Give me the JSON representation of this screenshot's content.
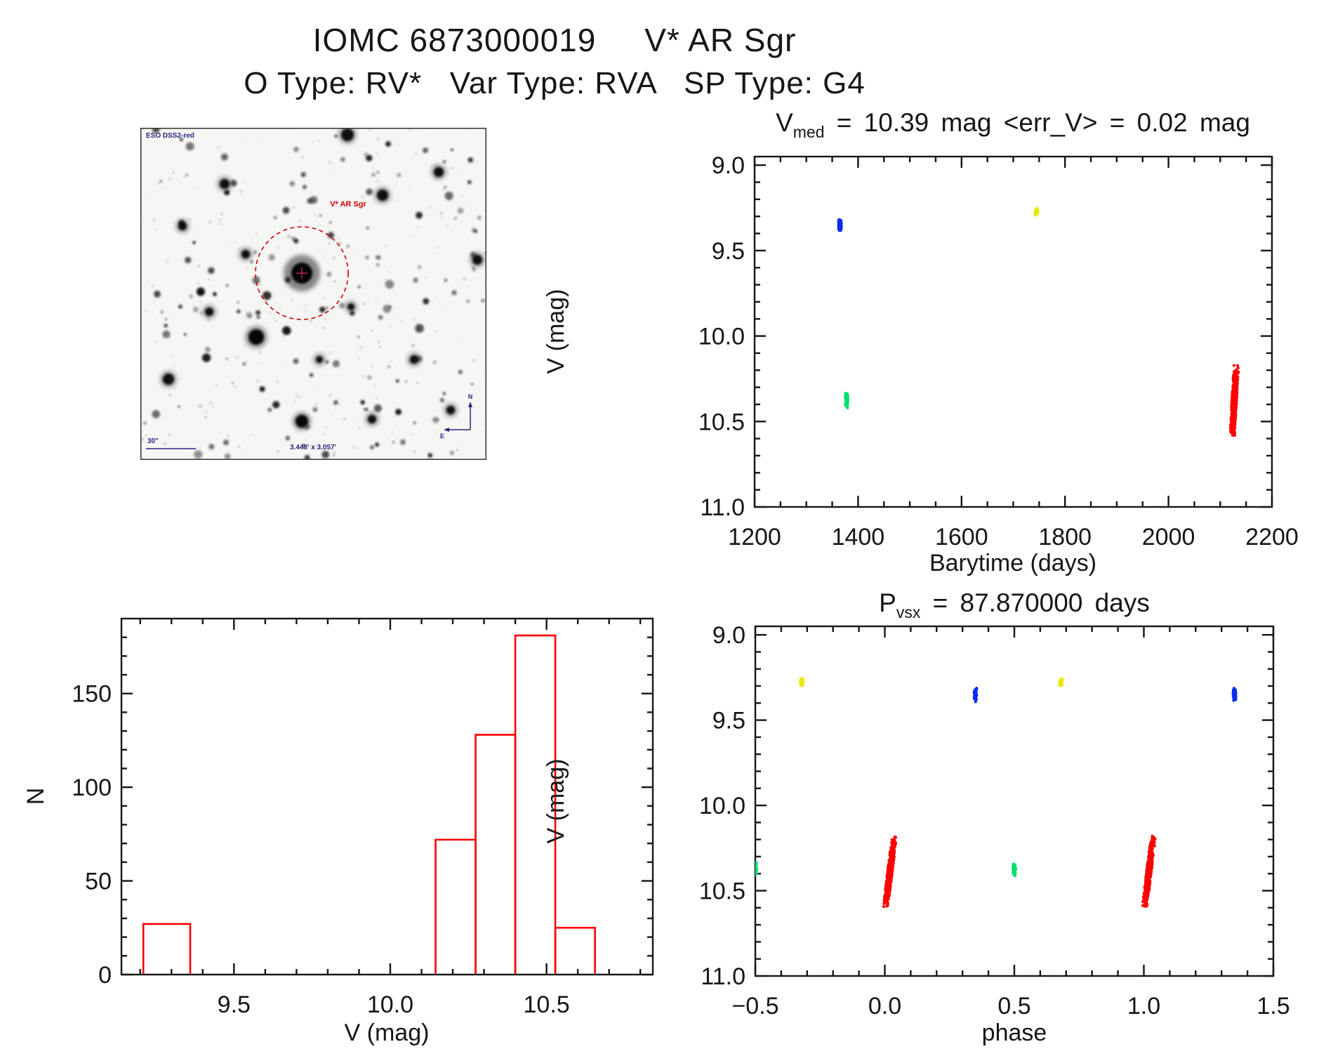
{
  "header": {
    "title": "IOMC 6873000019     V* AR Sgr",
    "subtitle": "O Type: RV*   Var Type: RVA   SP Type: G4"
  },
  "colors": {
    "red": "#ff0000",
    "blue": "#0a2cf0",
    "green": "#00e070",
    "yellow": "#e9e900",
    "frame": "#151515",
    "annotation_blue": "#26267e",
    "target_red": "#cc0000",
    "target_cross": "#cc2266"
  },
  "dss_panel": {
    "survey_label": "ESO DSS2-red",
    "target_label": "V* AR Sgr",
    "scale_label": "30\"",
    "fov_label": "3.448' x 3.057'",
    "compass_north": "N",
    "compass_east": "E"
  },
  "chart_data": [
    {
      "id": "lightcurve",
      "type": "scatter",
      "title": {
        "pre": "V",
        "sub": "med",
        "post": " = 10.39 mag <err_V> = 0.02 mag"
      },
      "xlabel": "Barytime (days)",
      "ylabel": "V (mag)",
      "xlim": [
        1200,
        2200
      ],
      "ylim": [
        8.95,
        11.0
      ],
      "y_axis_direction": "inverted-magnitude",
      "xticks": [
        1200,
        1400,
        1600,
        1800,
        2000,
        2200
      ],
      "xtick_labels": [
        "1200",
        "1400",
        "1600",
        "1800",
        "2000",
        "2200"
      ],
      "yticks": [
        9.0,
        9.5,
        10.0,
        10.5,
        11.0
      ],
      "ytick_labels": [
        "9.0",
        "9.5",
        "10.0",
        "10.5",
        "11.0"
      ],
      "x_minor_step": 50,
      "y_minor_step": 0.1,
      "grid": false,
      "clusters": [
        {
          "name": "epoch-1",
          "color": "blue",
          "x": 1365,
          "v_range": [
            9.31,
            9.39
          ],
          "n": 60,
          "tilt": 0
        },
        {
          "name": "epoch-2",
          "color": "green",
          "x": 1378,
          "v_range": [
            10.33,
            10.42
          ],
          "n": 55,
          "tilt": 0
        },
        {
          "name": "epoch-3",
          "color": "yellow",
          "x": 1745,
          "v_range": [
            9.25,
            9.3
          ],
          "n": 45,
          "tilt": 0
        },
        {
          "name": "epoch-4",
          "color": "red",
          "x": 2127,
          "v_range": [
            10.17,
            10.6
          ],
          "n": 430,
          "tilt": 14
        }
      ]
    },
    {
      "id": "histogram",
      "type": "histogram",
      "title": null,
      "xlabel": "V (mag)",
      "ylabel": "N",
      "xlim": [
        9.14,
        10.84
      ],
      "ylim": [
        0,
        190
      ],
      "xticks": [
        9.5,
        10.0,
        10.5
      ],
      "xtick_labels": [
        "9.5",
        "10.0",
        "10.5"
      ],
      "yticks": [
        0,
        50,
        100,
        150
      ],
      "ytick_labels": [
        "0",
        "50",
        "100",
        "150"
      ],
      "x_minor_step": 0.1,
      "y_minor_step": 10,
      "grid": false,
      "bins": [
        {
          "x0": 9.21,
          "x1": 9.36,
          "n": 27
        },
        {
          "x0": 10.145,
          "x1": 10.273,
          "n": 72
        },
        {
          "x0": 10.273,
          "x1": 10.4,
          "n": 128
        },
        {
          "x0": 10.4,
          "x1": 10.528,
          "n": 181
        },
        {
          "x0": 10.528,
          "x1": 10.655,
          "n": 25
        }
      ]
    },
    {
      "id": "phase",
      "type": "scatter",
      "title": {
        "pre": "P",
        "sub": "vsx",
        "post": " = 87.870000 days"
      },
      "xlabel": "phase",
      "ylabel": "V (mag)",
      "xlim": [
        -0.5,
        1.5
      ],
      "ylim": [
        8.95,
        11.0
      ],
      "y_axis_direction": "inverted-magnitude",
      "xticks": [
        -0.5,
        0.0,
        0.5,
        1.0,
        1.5
      ],
      "xtick_labels": [
        "−0.5",
        "0.0",
        "0.5",
        "1.0",
        "1.5"
      ],
      "yticks": [
        9.0,
        9.5,
        10.0,
        10.5,
        11.0
      ],
      "ytick_labels": [
        "9.0",
        "9.5",
        "10.0",
        "10.5",
        "11.0"
      ],
      "x_minor_step": 0.1,
      "y_minor_step": 0.1,
      "grid": false,
      "clusters": [
        {
          "name": "yellow-a",
          "color": "yellow",
          "x": -0.32,
          "v_range": [
            9.25,
            9.3
          ],
          "n": 45,
          "tilt": 0
        },
        {
          "name": "yellow-b",
          "color": "yellow",
          "x": 0.68,
          "v_range": [
            9.25,
            9.3
          ],
          "n": 45,
          "tilt": 0
        },
        {
          "name": "blue-a",
          "color": "blue",
          "x": 0.35,
          "v_range": [
            9.31,
            9.39
          ],
          "n": 60,
          "tilt": 0
        },
        {
          "name": "blue-b",
          "color": "blue",
          "x": 1.35,
          "v_range": [
            9.31,
            9.39
          ],
          "n": 60,
          "tilt": 0
        },
        {
          "name": "green-a",
          "color": "green",
          "x": -0.5,
          "v_range": [
            10.33,
            10.42
          ],
          "n": 55,
          "tilt": 0
        },
        {
          "name": "green-b",
          "color": "green",
          "x": 0.5,
          "v_range": [
            10.33,
            10.42
          ],
          "n": 55,
          "tilt": 0
        },
        {
          "name": "red-a",
          "color": "red",
          "x": 0.02,
          "v_range": [
            10.17,
            10.6
          ],
          "n": 430,
          "tilt": 30
        },
        {
          "name": "red-b",
          "color": "red",
          "x": 1.02,
          "v_range": [
            10.17,
            10.6
          ],
          "n": 430,
          "tilt": 30
        }
      ]
    }
  ]
}
